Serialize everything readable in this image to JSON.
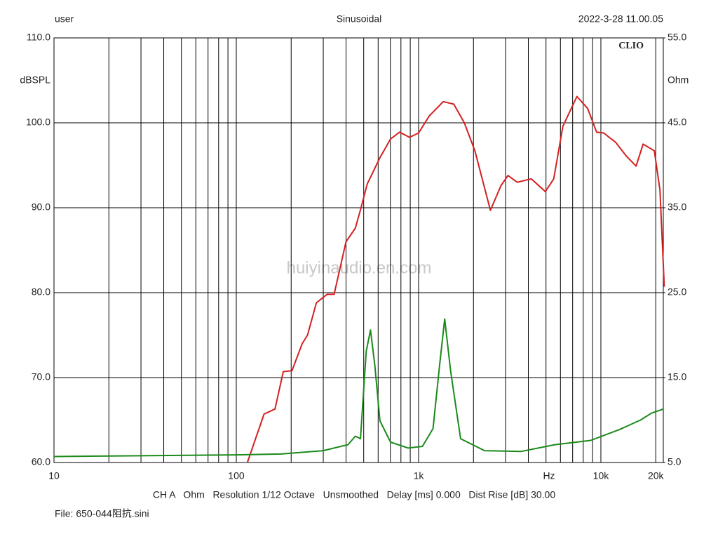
{
  "chart_data": {
    "type": "line",
    "header_left": "user",
    "title": "Sinusoidal",
    "header_right": "2022-3-28 11.00.05",
    "brand": "CLIO",
    "ylabel": "dBSPL",
    "y2label": "Ohm",
    "xunit": "Hz",
    "watermark": "huiyinaudio.en.com",
    "footer": "CH A   Ohm   Resolution 1/12 Octave   Unsmoothed   Delay [ms] 0.000   Dist Rise [dB] 30.00",
    "file": "File: 650-044阻抗.sini",
    "xscale": "log",
    "xlim": [
      10,
      22000
    ],
    "xticks": [
      10,
      100,
      {
        "value": 1000,
        "label": "1k"
      },
      {
        "value": 10000,
        "label": "10k"
      },
      {
        "value": 20000,
        "label": "20k"
      }
    ],
    "xgrid": [
      20,
      30,
      40,
      50,
      60,
      70,
      80,
      90,
      200,
      300,
      400,
      500,
      600,
      700,
      800,
      900,
      2000,
      3000,
      4000,
      5000,
      6000,
      7000,
      8000,
      9000
    ],
    "ylim": [
      60,
      110
    ],
    "yticks": [
      {
        "value": 60,
        "label": "60.0"
      },
      {
        "value": 70,
        "label": "70.0"
      },
      {
        "value": 80,
        "label": "80.0"
      },
      {
        "value": 90,
        "label": "90.0"
      },
      {
        "value": 100,
        "label": "100.0"
      },
      {
        "value": 110,
        "label": "110.0"
      }
    ],
    "y2lim": [
      5,
      55
    ],
    "y2ticks": [
      {
        "value": 5,
        "label": "5.0"
      },
      {
        "value": 15,
        "label": "15.0"
      },
      {
        "value": 25,
        "label": "25.0"
      },
      {
        "value": 35,
        "label": "35.0"
      },
      {
        "value": 45,
        "label": "45.0"
      },
      {
        "value": 55,
        "label": "55.0"
      }
    ],
    "grid": true,
    "series": [
      {
        "color": "#d42020",
        "x": [
          115,
          142,
          163,
          181,
          202,
          230,
          246,
          275,
          315,
          344,
          400,
          450,
          479,
          523,
          614,
          702,
          787,
          892,
          1000,
          1143,
          1366,
          1560,
          1782,
          2037,
          2477,
          2832,
          3093,
          3474,
          4150,
          4958,
          5512,
          6190,
          7390,
          8450,
          9480,
          10360,
          12050,
          13770,
          15600,
          17050,
          19650,
          21090,
          22280
        ],
        "values": [
          60,
          65.7,
          66.3,
          70.7,
          70.8,
          74,
          75,
          78.8,
          79.8,
          79.8,
          86,
          87.6,
          89.7,
          92.8,
          95.9,
          98.1,
          98.9,
          98.3,
          98.8,
          100.8,
          102.5,
          102.2,
          100,
          96.7,
          89.7,
          92.6,
          93.8,
          93,
          93.4,
          91.9,
          93.4,
          99.6,
          103.1,
          101.7,
          98.9,
          98.8,
          97.7,
          96.1,
          94.9,
          97.5,
          96.7,
          92.1,
          80.7
        ]
      },
      {
        "color": "#1a8a1a",
        "axis": "y2",
        "x": [
          10,
          100,
          176,
          300,
          410,
          450,
          480,
          516,
          545,
          575,
          614,
          702,
          877,
          1050,
          1200,
          1305,
          1390,
          1500,
          1700,
          2300,
          3640,
          5600,
          8800,
          12700,
          16500,
          18900,
          22000
        ],
        "values": [
          5.7,
          5.9,
          6.0,
          6.4,
          7.1,
          8.1,
          7.8,
          18.1,
          20.6,
          16.5,
          9.9,
          7.4,
          6.7,
          6.9,
          9.0,
          16.5,
          21.9,
          15.7,
          7.8,
          6.4,
          6.3,
          7.1,
          7.6,
          8.9,
          10.0,
          10.8,
          11.3
        ]
      }
    ]
  }
}
